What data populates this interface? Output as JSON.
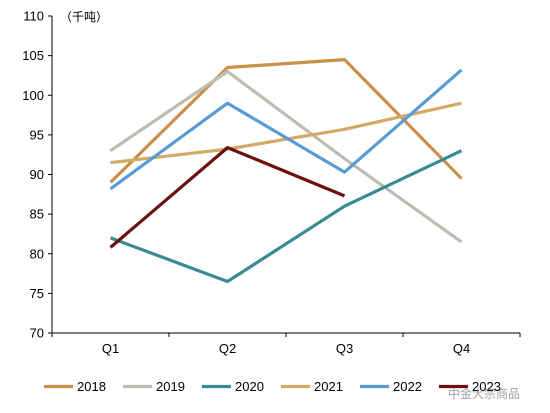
{
  "chart_data": {
    "type": "line",
    "title": "",
    "unit_label": "（千吨）",
    "xlabel": "",
    "ylabel": "",
    "categories": [
      "Q1",
      "Q2",
      "Q3",
      "Q4"
    ],
    "ylim": [
      70,
      110
    ],
    "yticks": [
      70,
      75,
      80,
      85,
      90,
      95,
      100,
      105,
      110
    ],
    "grid": false,
    "legend_position": "bottom",
    "series": [
      {
        "name": "2018",
        "color": "#C8904A",
        "values": [
          89.0,
          103.5,
          104.5,
          89.5
        ]
      },
      {
        "name": "2019",
        "color": "#BDBDB2",
        "values": [
          93.0,
          103.0,
          92.0,
          81.5
        ]
      },
      {
        "name": "2020",
        "color": "#3A8A92",
        "values": [
          82.0,
          76.5,
          86.0,
          93.0
        ]
      },
      {
        "name": "2021",
        "color": "#D2AA66",
        "values": [
          91.5,
          93.2,
          95.7,
          99.0
        ]
      },
      {
        "name": "2022",
        "color": "#5B9BD5",
        "values": [
          88.2,
          99.0,
          90.3,
          103.2
        ]
      },
      {
        "name": "2023",
        "color": "#6B0F0F",
        "values": [
          80.8,
          93.4,
          87.3,
          null
        ]
      }
    ]
  },
  "watermark": "中金大宗商品"
}
